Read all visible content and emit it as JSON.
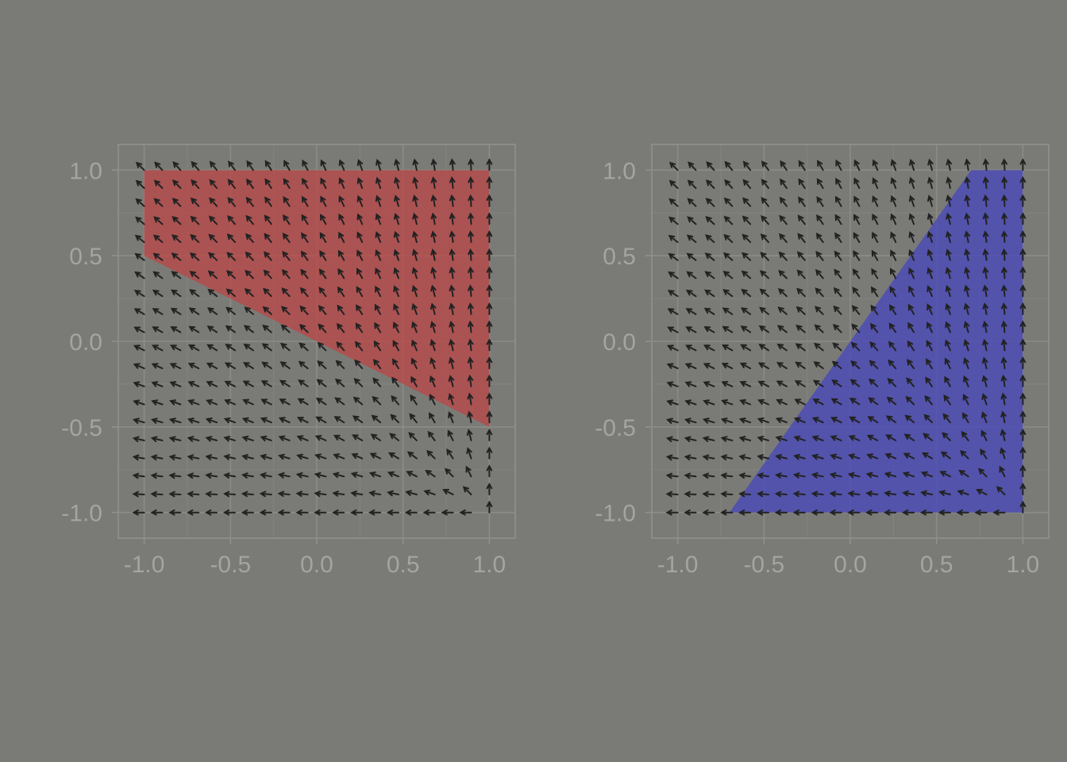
{
  "chart_data": [
    {
      "type": "vector-field",
      "title": "",
      "xlabel": "",
      "ylabel": "",
      "xlim": [
        -1.15,
        1.15
      ],
      "ylim": [
        -1.15,
        1.15
      ],
      "x_ticks": [
        -1.0,
        -0.5,
        0.0,
        0.5,
        1.0
      ],
      "y_ticks": [
        -1.0,
        -0.5,
        0.0,
        0.5,
        1.0
      ],
      "x_tick_labels": [
        "-1.0",
        "-0.5",
        "0.0",
        "0.5",
        "1.0"
      ],
      "y_tick_labels": [
        "-1.0",
        "-0.5",
        "0.0",
        "0.5",
        "1.0"
      ],
      "grid": true,
      "field": {
        "grid_min": -1.0,
        "grid_max": 1.0,
        "n": 20,
        "description": "unit direction of (x, y) - (1, -1)"
      },
      "region": {
        "color": "#b84a4a",
        "opacity": 0.8,
        "polygon": [
          [
            -1.0,
            1.0
          ],
          [
            1.0,
            1.0
          ],
          [
            1.0,
            -0.5
          ],
          [
            -1.0,
            0.5
          ]
        ]
      }
    },
    {
      "type": "vector-field",
      "title": "",
      "xlabel": "",
      "ylabel": "",
      "xlim": [
        -1.15,
        1.15
      ],
      "ylim": [
        -1.15,
        1.15
      ],
      "x_ticks": [
        -1.0,
        -0.5,
        0.0,
        0.5,
        1.0
      ],
      "y_ticks": [
        -1.0,
        -0.5,
        0.0,
        0.5,
        1.0
      ],
      "x_tick_labels": [
        "-1.0",
        "-0.5",
        "0.0",
        "0.5",
        "1.0"
      ],
      "y_tick_labels": [
        "-1.0",
        "-0.5",
        "0.0",
        "0.5",
        "1.0"
      ],
      "grid": true,
      "field": {
        "grid_min": -1.0,
        "grid_max": 1.0,
        "n": 20,
        "description": "unit direction of (x, y) - (1, -1)"
      },
      "region": {
        "color": "#4c4cb6",
        "opacity": 0.85,
        "polygon": [
          [
            0.7,
            1.0
          ],
          [
            1.0,
            1.0
          ],
          [
            1.0,
            -1.0
          ],
          [
            -0.7,
            -1.0
          ]
        ]
      }
    }
  ]
}
